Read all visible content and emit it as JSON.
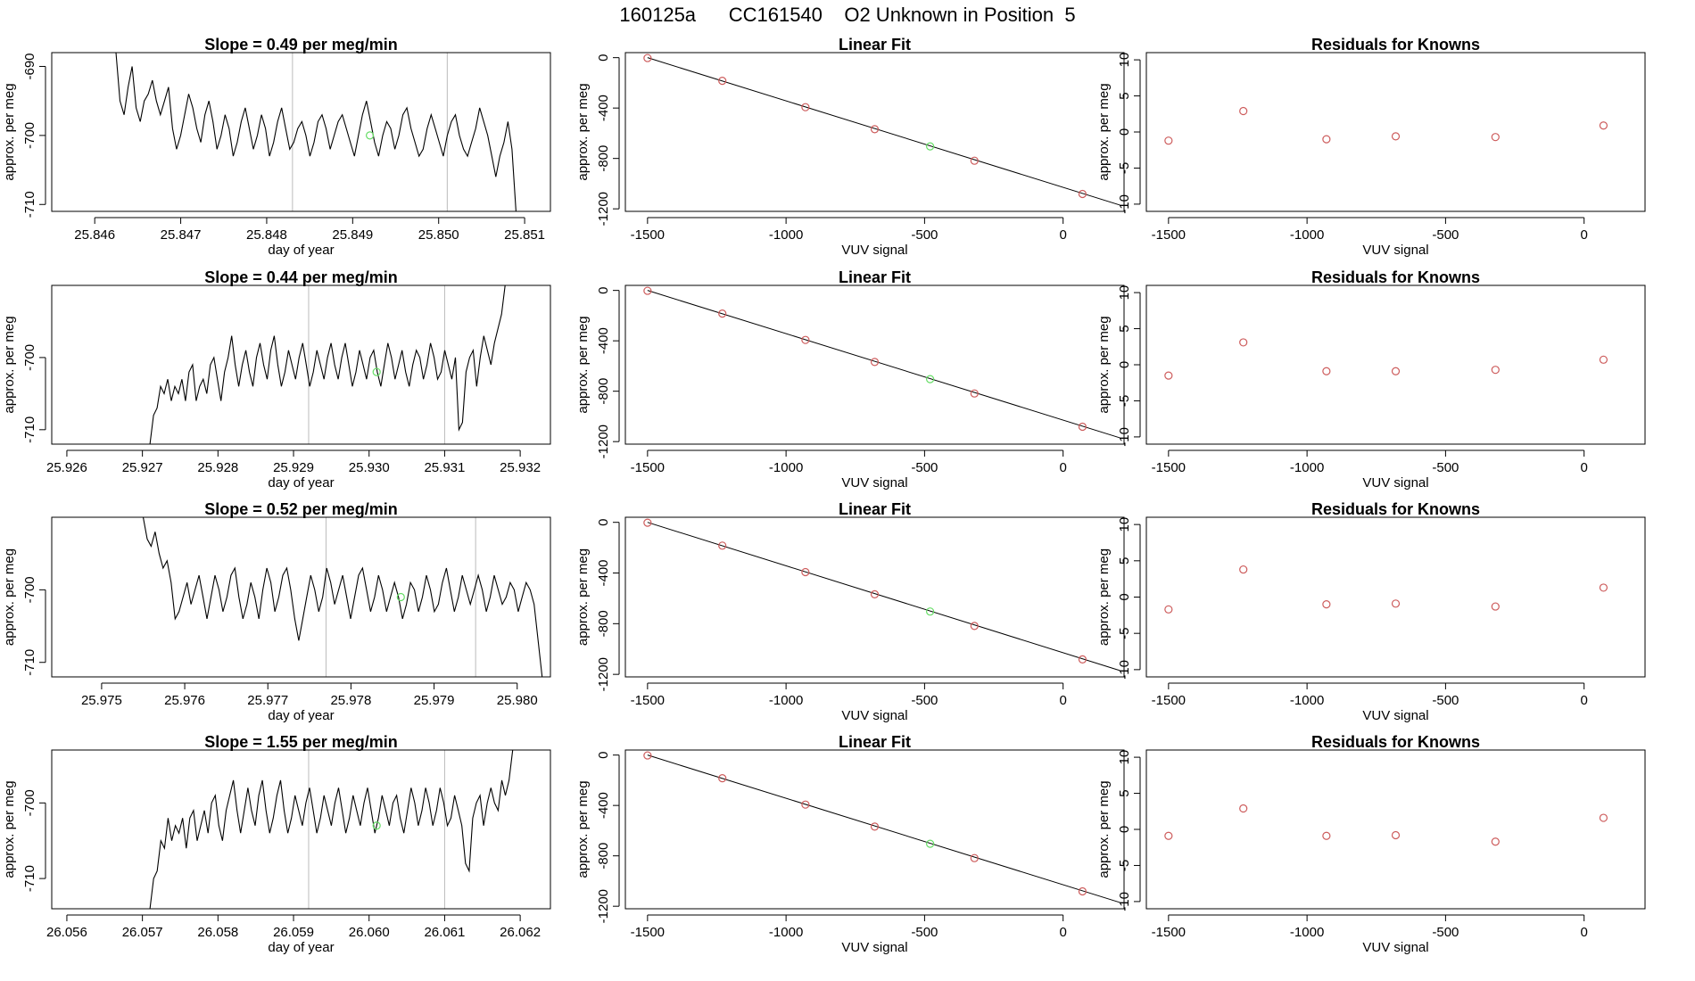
{
  "title": "160125a      CC161540    O2 Unknown in Position  5",
  "colors": {
    "axis": "#000000",
    "series": "#000000",
    "marker_known": "#cd5c5c",
    "marker_unknown": "#66dd66",
    "vline": "#bbbbbb"
  },
  "chart_data": [
    {
      "type": "line",
      "row": 0,
      "panel": "timeseries",
      "title": "Slope =  0.49  per meg/min",
      "xlabel": "day of year",
      "ylabel": "approx. per meg",
      "xlim": [
        25.8455,
        25.8513
      ],
      "ylim": [
        -711,
        -688
      ],
      "xticks": [
        25.846,
        25.847,
        25.848,
        25.849,
        25.85,
        25.851
      ],
      "xticklabels": [
        "25.846",
        "25.847",
        "25.848",
        "25.849",
        "25.850",
        "25.851"
      ],
      "yticks": [
        -690,
        -700,
        -710
      ],
      "yticklabels": [
        "-690",
        "-700",
        "-710"
      ],
      "vlines": [
        25.8483,
        25.8501
      ],
      "start": 25.8462,
      "end": 25.8509,
      "values": [
        -688,
        -688,
        -695,
        -697,
        -693,
        -690,
        -696,
        -698,
        -695,
        -694,
        -692,
        -695,
        -697,
        -695,
        -693,
        -699,
        -702,
        -700,
        -697,
        -694,
        -696,
        -699,
        -701,
        -697,
        -695,
        -698,
        -702,
        -700,
        -697,
        -699,
        -703,
        -701,
        -698,
        -696,
        -699,
        -702,
        -700,
        -697,
        -699,
        -703,
        -701,
        -698,
        -696,
        -699,
        -702,
        -701,
        -699,
        -698,
        -700,
        -703,
        -701,
        -698,
        -697,
        -699,
        -702,
        -700,
        -698,
        -697,
        -699,
        -701,
        -703,
        -700,
        -697,
        -695,
        -698,
        -701,
        -703,
        -700,
        -698,
        -699,
        -702,
        -700,
        -697,
        -696,
        -699,
        -701,
        -703,
        -702,
        -699,
        -697,
        -699,
        -701,
        -703,
        -700,
        -698,
        -697,
        -700,
        -702,
        -703,
        -701,
        -699,
        -696,
        -698,
        -700,
        -703,
        -706,
        -703,
        -701,
        -698,
        -702,
        -711
      ],
      "marker": [
        25.8492,
        -700
      ]
    },
    {
      "type": "scatter",
      "row": 0,
      "panel": "fit",
      "title": "Linear Fit",
      "xlabel": "VUV signal",
      "ylabel": "approx. per meg",
      "xlim": [
        -1580,
        220
      ],
      "ylim": [
        -1220,
        40
      ],
      "xticks": [
        -1500,
        -1000,
        -500,
        0
      ],
      "xticklabels": [
        "-1500",
        "-1000",
        "-500",
        "0"
      ],
      "yticks": [
        0,
        -400,
        -800,
        -1200
      ],
      "yticklabels": [
        "0",
        "-400",
        "-800",
        "-1200"
      ],
      "fit_line": [
        [
          -1500,
          0
        ],
        [
          205,
          -1170
        ]
      ],
      "known": [
        [
          -1500,
          -3
        ],
        [
          -1230,
          -184
        ],
        [
          -930,
          -393
        ],
        [
          -680,
          -568
        ],
        [
          -320,
          -818
        ],
        [
          70,
          -1082
        ]
      ],
      "unknown": [
        [
          -480,
          -704
        ]
      ]
    },
    {
      "type": "scatter",
      "row": 0,
      "panel": "residuals",
      "title": "Residuals for Knowns",
      "xlabel": "VUV signal",
      "ylabel": "approx. per meg",
      "xlim": [
        -1580,
        220
      ],
      "ylim": [
        -11,
        11
      ],
      "xticks": [
        -1500,
        -1000,
        -500,
        0
      ],
      "xticklabels": [
        "-1500",
        "-1000",
        "-500",
        "0"
      ],
      "yticks": [
        10,
        5,
        0,
        -5,
        -10
      ],
      "yticklabels": [
        "10",
        "5",
        "0",
        "-5",
        "-10"
      ],
      "known": [
        [
          -1500,
          -1.2
        ],
        [
          -1230,
          2.9
        ],
        [
          -930,
          -1.0
        ],
        [
          -680,
          -0.6
        ],
        [
          -320,
          -0.7
        ],
        [
          70,
          0.9
        ]
      ]
    },
    {
      "type": "line",
      "row": 1,
      "panel": "timeseries",
      "title": "Slope =  0.44  per meg/min",
      "xlabel": "day of year",
      "ylabel": "approx. per meg",
      "xlim": [
        25.9258,
        25.9324
      ],
      "ylim": [
        -712,
        -690
      ],
      "xticks": [
        25.926,
        25.927,
        25.928,
        25.929,
        25.93,
        25.931,
        25.932
      ],
      "xticklabels": [
        "25.926",
        "25.927",
        "25.928",
        "25.929",
        "25.930",
        "25.931",
        "25.932"
      ],
      "yticks": [
        -700,
        -710
      ],
      "yticklabels": [
        "-700",
        "-710"
      ],
      "vlines": [
        25.9292,
        25.931
      ],
      "start": 25.9271,
      "end": 25.9318,
      "values": [
        -712,
        -708,
        -707,
        -704,
        -705,
        -703,
        -706,
        -704,
        -705,
        -703,
        -706,
        -702,
        -701,
        -706,
        -704,
        -703,
        -705,
        -701,
        -700,
        -703,
        -706,
        -702,
        -700,
        -697,
        -701,
        -704,
        -701,
        -699,
        -702,
        -704,
        -700,
        -698,
        -701,
        -703,
        -699,
        -697,
        -701,
        -704,
        -702,
        -699,
        -701,
        -703,
        -700,
        -698,
        -701,
        -704,
        -702,
        -699,
        -701,
        -703,
        -700,
        -698,
        -701,
        -703,
        -700,
        -698,
        -701,
        -704,
        -702,
        -699,
        -701,
        -703,
        -700,
        -699,
        -702,
        -704,
        -701,
        -698,
        -700,
        -703,
        -701,
        -699,
        -702,
        -704,
        -701,
        -699,
        -700,
        -703,
        -701,
        -698,
        -700,
        -703,
        -702,
        -699,
        -701,
        -703,
        -700,
        -710,
        -709,
        -702,
        -700,
        -699,
        -704,
        -700,
        -697,
        -699,
        -701,
        -698,
        -696,
        -694,
        -690
      ],
      "marker": [
        25.9301,
        -702
      ]
    },
    {
      "type": "scatter",
      "row": 1,
      "panel": "fit",
      "title": "Linear Fit",
      "xlabel": "VUV signal",
      "ylabel": "approx. per meg",
      "xlim": [
        -1580,
        220
      ],
      "ylim": [
        -1220,
        40
      ],
      "xticks": [
        -1500,
        -1000,
        -500,
        0
      ],
      "xticklabels": [
        "-1500",
        "-1000",
        "-500",
        "0"
      ],
      "yticks": [
        0,
        -400,
        -800,
        -1200
      ],
      "yticklabels": [
        "0",
        "-400",
        "-800",
        "-1200"
      ],
      "fit_line": [
        [
          -1500,
          0
        ],
        [
          205,
          -1170
        ]
      ],
      "known": [
        [
          -1500,
          -3
        ],
        [
          -1230,
          -184
        ],
        [
          -930,
          -393
        ],
        [
          -680,
          -568
        ],
        [
          -320,
          -818
        ],
        [
          70,
          -1082
        ]
      ],
      "unknown": [
        [
          -480,
          -704
        ]
      ]
    },
    {
      "type": "scatter",
      "row": 1,
      "panel": "residuals",
      "title": "Residuals for Knowns",
      "xlabel": "VUV signal",
      "ylabel": "approx. per meg",
      "xlim": [
        -1580,
        220
      ],
      "ylim": [
        -11,
        11
      ],
      "xticks": [
        -1500,
        -1000,
        -500,
        0
      ],
      "xticklabels": [
        "-1500",
        "-1000",
        "-500",
        "0"
      ],
      "yticks": [
        10,
        5,
        0,
        -5,
        -10
      ],
      "yticklabels": [
        "10",
        "5",
        "0",
        "-5",
        "-10"
      ],
      "known": [
        [
          -1500,
          -1.5
        ],
        [
          -1230,
          3.1
        ],
        [
          -930,
          -0.9
        ],
        [
          -680,
          -0.9
        ],
        [
          -320,
          -0.7
        ],
        [
          70,
          0.7
        ]
      ]
    },
    {
      "type": "line",
      "row": 2,
      "panel": "timeseries",
      "title": "Slope =  0.52  per meg/min",
      "xlabel": "day of year",
      "ylabel": "approx. per meg",
      "xlim": [
        25.9744,
        25.9804
      ],
      "ylim": [
        -712,
        -690
      ],
      "xticks": [
        25.975,
        25.976,
        25.977,
        25.978,
        25.979,
        25.98
      ],
      "xticklabels": [
        "25.975",
        "25.976",
        "25.977",
        "25.978",
        "25.979",
        "25.980"
      ],
      "yticks": [
        -700,
        -710
      ],
      "yticklabels": [
        "-700",
        "-710"
      ],
      "vlines": [
        25.9777,
        25.9795
      ],
      "start": 25.9755,
      "end": 25.9803,
      "values": [
        -690,
        -693,
        -694,
        -692,
        -695,
        -697,
        -696,
        -699,
        -704,
        -703,
        -701,
        -699,
        -702,
        -700,
        -698,
        -701,
        -704,
        -701,
        -698,
        -700,
        -703,
        -701,
        -698,
        -697,
        -701,
        -704,
        -702,
        -699,
        -701,
        -704,
        -700,
        -697,
        -699,
        -703,
        -701,
        -698,
        -697,
        -700,
        -704,
        -707,
        -704,
        -701,
        -698,
        -700,
        -703,
        -701,
        -697,
        -699,
        -702,
        -700,
        -698,
        -701,
        -704,
        -701,
        -698,
        -697,
        -700,
        -703,
        -701,
        -698,
        -700,
        -703,
        -701,
        -699,
        -701,
        -704,
        -702,
        -699,
        -700,
        -703,
        -701,
        -698,
        -700,
        -703,
        -702,
        -699,
        -697,
        -700,
        -703,
        -701,
        -698,
        -700,
        -702,
        -700,
        -698,
        -700,
        -703,
        -701,
        -698,
        -700,
        -702,
        -701,
        -699,
        -700,
        -703,
        -701,
        -699,
        -700,
        -702,
        -707,
        -712
      ],
      "marker": [
        25.9786,
        -701
      ]
    },
    {
      "type": "scatter",
      "row": 2,
      "panel": "fit",
      "title": "Linear Fit",
      "xlabel": "VUV signal",
      "ylabel": "approx. per meg",
      "xlim": [
        -1580,
        220
      ],
      "ylim": [
        -1220,
        40
      ],
      "xticks": [
        -1500,
        -1000,
        -500,
        0
      ],
      "xticklabels": [
        "-1500",
        "-1000",
        "-500",
        "0"
      ],
      "yticks": [
        0,
        -400,
        -800,
        -1200
      ],
      "yticklabels": [
        "0",
        "-400",
        "-800",
        "-1200"
      ],
      "fit_line": [
        [
          -1500,
          0
        ],
        [
          205,
          -1170
        ]
      ],
      "known": [
        [
          -1500,
          -3
        ],
        [
          -1230,
          -184
        ],
        [
          -930,
          -393
        ],
        [
          -680,
          -568
        ],
        [
          -320,
          -818
        ],
        [
          70,
          -1082
        ]
      ],
      "unknown": [
        [
          -480,
          -704
        ]
      ]
    },
    {
      "type": "scatter",
      "row": 2,
      "panel": "residuals",
      "title": "Residuals for Knowns",
      "xlabel": "VUV signal",
      "ylabel": "approx. per meg",
      "xlim": [
        -1580,
        220
      ],
      "ylim": [
        -11,
        11
      ],
      "xticks": [
        -1500,
        -1000,
        -500,
        0
      ],
      "xticklabels": [
        "-1500",
        "-1000",
        "-500",
        "0"
      ],
      "yticks": [
        10,
        5,
        0,
        -5,
        -10
      ],
      "yticklabels": [
        "10",
        "5",
        "0",
        "-5",
        "-10"
      ],
      "known": [
        [
          -1500,
          -1.7
        ],
        [
          -1230,
          3.8
        ],
        [
          -930,
          -1.0
        ],
        [
          -680,
          -0.9
        ],
        [
          -320,
          -1.3
        ],
        [
          70,
          1.3
        ]
      ]
    },
    {
      "type": "line",
      "row": 3,
      "panel": "timeseries",
      "title": "Slope =  1.55  per meg/min",
      "xlabel": "day of year",
      "ylabel": "approx. per meg",
      "xlim": [
        26.0558,
        26.0624
      ],
      "ylim": [
        -714,
        -693
      ],
      "xticks": [
        26.056,
        26.057,
        26.058,
        26.059,
        26.06,
        26.061,
        26.062
      ],
      "xticklabels": [
        "26.056",
        "26.057",
        "26.058",
        "26.059",
        "26.060",
        "26.061",
        "26.062"
      ],
      "yticks": [
        -700,
        -710
      ],
      "yticklabels": [
        "-700",
        "-710"
      ],
      "vlines": [
        26.0592,
        26.061
      ],
      "start": 26.0571,
      "end": 26.0619,
      "values": [
        -714,
        -710,
        -709,
        -705,
        -706,
        -702,
        -705,
        -703,
        -704,
        -702,
        -706,
        -702,
        -701,
        -705,
        -703,
        -701,
        -704,
        -700,
        -699,
        -703,
        -705,
        -701,
        -699,
        -697,
        -701,
        -704,
        -701,
        -698,
        -701,
        -703,
        -699,
        -697,
        -701,
        -704,
        -702,
        -699,
        -697,
        -701,
        -704,
        -702,
        -699,
        -701,
        -703,
        -700,
        -698,
        -701,
        -704,
        -702,
        -699,
        -701,
        -703,
        -700,
        -698,
        -701,
        -704,
        -702,
        -699,
        -701,
        -703,
        -700,
        -698,
        -701,
        -704,
        -702,
        -699,
        -701,
        -703,
        -700,
        -699,
        -702,
        -704,
        -701,
        -698,
        -700,
        -703,
        -701,
        -698,
        -700,
        -703,
        -701,
        -698,
        -700,
        -703,
        -702,
        -699,
        -701,
        -703,
        -708,
        -709,
        -702,
        -700,
        -699,
        -703,
        -700,
        -698,
        -700,
        -701,
        -697,
        -699,
        -697,
        -693
      ],
      "marker": [
        26.0601,
        -703
      ]
    },
    {
      "type": "scatter",
      "row": 3,
      "panel": "fit",
      "title": "Linear Fit",
      "xlabel": "VUV signal",
      "ylabel": "approx. per meg",
      "xlim": [
        -1580,
        220
      ],
      "ylim": [
        -1220,
        40
      ],
      "xticks": [
        -1500,
        -1000,
        -500,
        0
      ],
      "xticklabels": [
        "-1500",
        "-1000",
        "-500",
        "0"
      ],
      "yticks": [
        0,
        -400,
        -800,
        -1200
      ],
      "yticklabels": [
        "0",
        "-400",
        "-800",
        "-1200"
      ],
      "fit_line": [
        [
          -1500,
          0
        ],
        [
          205,
          -1170
        ]
      ],
      "known": [
        [
          -1500,
          -3
        ],
        [
          -1230,
          -184
        ],
        [
          -930,
          -393
        ],
        [
          -680,
          -568
        ],
        [
          -320,
          -818
        ],
        [
          70,
          -1082
        ]
      ],
      "unknown": [
        [
          -480,
          -704
        ]
      ]
    },
    {
      "type": "scatter",
      "row": 3,
      "panel": "residuals",
      "title": "Residuals for Knowns",
      "xlabel": "VUV signal",
      "ylabel": "approx. per meg",
      "xlim": [
        -1580,
        220
      ],
      "ylim": [
        -11,
        11
      ],
      "xticks": [
        -1500,
        -1000,
        -500,
        0
      ],
      "xticklabels": [
        "-1500",
        "-1000",
        "-500",
        "0"
      ],
      "yticks": [
        10,
        5,
        0,
        -5,
        -10
      ],
      "yticklabels": [
        "10",
        "5",
        "0",
        "-5",
        "-10"
      ],
      "known": [
        [
          -1500,
          -0.9
        ],
        [
          -1230,
          2.9
        ],
        [
          -930,
          -0.9
        ],
        [
          -680,
          -0.8
        ],
        [
          -320,
          -1.7
        ],
        [
          70,
          1.6
        ]
      ]
    }
  ]
}
